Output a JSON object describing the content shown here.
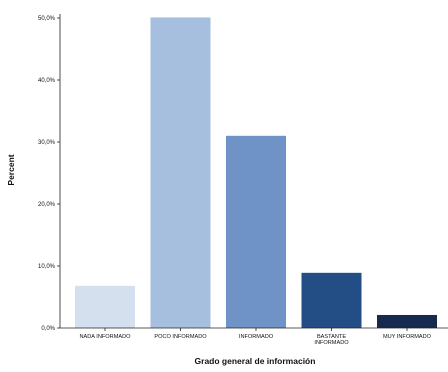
{
  "chart_data": {
    "type": "bar",
    "xlabel": "Grado general de información",
    "ylabel": "Percent",
    "ylim": [
      0,
      50
    ],
    "yticks": [
      0,
      10,
      20,
      30,
      40,
      50
    ],
    "ytick_labels": [
      "0,0%",
      "10,0%",
      "20,0%",
      "30,0%",
      "40,0%",
      "50,0%"
    ],
    "categories": [
      [
        "NADA INFORMADO"
      ],
      [
        "POCO INFORMADO"
      ],
      [
        "INFORMADO"
      ],
      [
        "BASTANTE",
        "INFORMADO"
      ],
      [
        "MUY INFORMADO"
      ]
    ],
    "values": [
      6.8,
      50.1,
      31.0,
      8.9,
      2.1
    ],
    "colors": [
      "#d5e0ef",
      "#a6bfdf",
      "#6f93c6",
      "#234e85",
      "#162a4f"
    ],
    "grid": false,
    "legend": "none"
  }
}
